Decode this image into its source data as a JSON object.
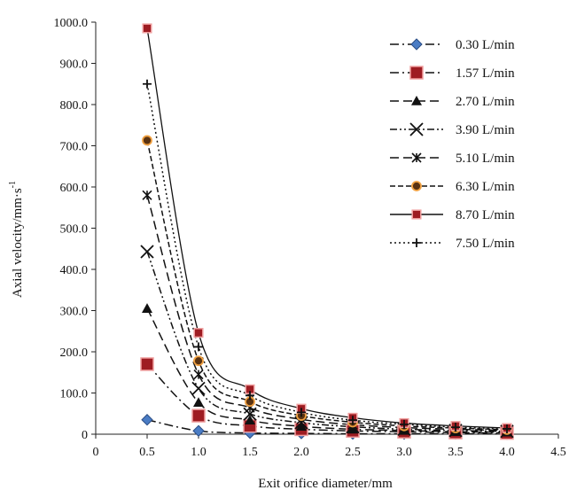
{
  "chart_data": {
    "type": "line",
    "xlabel": "Exit orifice diameter/mm",
    "ylabel": "Axial velocity/mm·s",
    "ylabel_superscript": "-1",
    "xlim": [
      0,
      4.5
    ],
    "ylim": [
      0,
      1000
    ],
    "x_ticks": [
      "0",
      "0.5",
      "1.0",
      "1.5",
      "2.0",
      "2.5",
      "3.0",
      "3.5",
      "4.0",
      "4.5"
    ],
    "y_ticks": [
      "0",
      "100.0",
      "200.0",
      "300.0",
      "400.0",
      "500.0",
      "600.0",
      "700.0",
      "800.0",
      "900.0",
      "1000.0"
    ],
    "grid": false,
    "legend_position": "top-right",
    "x": [
      0.5,
      1.0,
      1.5,
      2.0,
      2.5,
      3.0,
      3.5,
      4.0
    ],
    "series": [
      {
        "name": "0.30 L/min",
        "marker": "diamond",
        "dash": "dashdot",
        "color": "#4a7cc4",
        "values": [
          35,
          8,
          3,
          2,
          1,
          1,
          1,
          0.5
        ]
      },
      {
        "name": "1.57 L/min",
        "marker": "square",
        "dash": "dashdot",
        "color": "#9e1c22",
        "values": [
          170,
          45,
          20,
          12,
          8,
          6,
          4,
          3
        ]
      },
      {
        "name": "2.70 L/min",
        "marker": "triangle",
        "dash": "dash",
        "color": "#111111",
        "values": [
          305,
          77,
          34,
          19,
          12,
          9,
          6,
          5
        ]
      },
      {
        "name": "3.90 L/min",
        "marker": "x",
        "dash": "dashdotdot",
        "color": "#111111",
        "values": [
          443,
          111,
          49,
          28,
          18,
          12,
          9,
          7
        ]
      },
      {
        "name": "5.10 L/min",
        "marker": "asterisk",
        "dash": "dash",
        "color": "#111111",
        "values": [
          580,
          145,
          64,
          36,
          23,
          16,
          12,
          9
        ]
      },
      {
        "name": "6.30 L/min",
        "marker": "circle",
        "dash": "dashdense",
        "color": "#d98a2b",
        "values": [
          713,
          178,
          79,
          45,
          29,
          20,
          15,
          11
        ]
      },
      {
        "name": "8.70 L/min",
        "marker": "square-filled",
        "dash": "solid",
        "color": "#9e1c22",
        "values": [
          985,
          246,
          109,
          62,
          40,
          27,
          20,
          15
        ]
      },
      {
        "name": "7.50 L/min",
        "marker": "plus",
        "dash": "dotted",
        "color": "#111111",
        "values": [
          850,
          212,
          94,
          53,
          34,
          24,
          17,
          13
        ]
      }
    ]
  }
}
